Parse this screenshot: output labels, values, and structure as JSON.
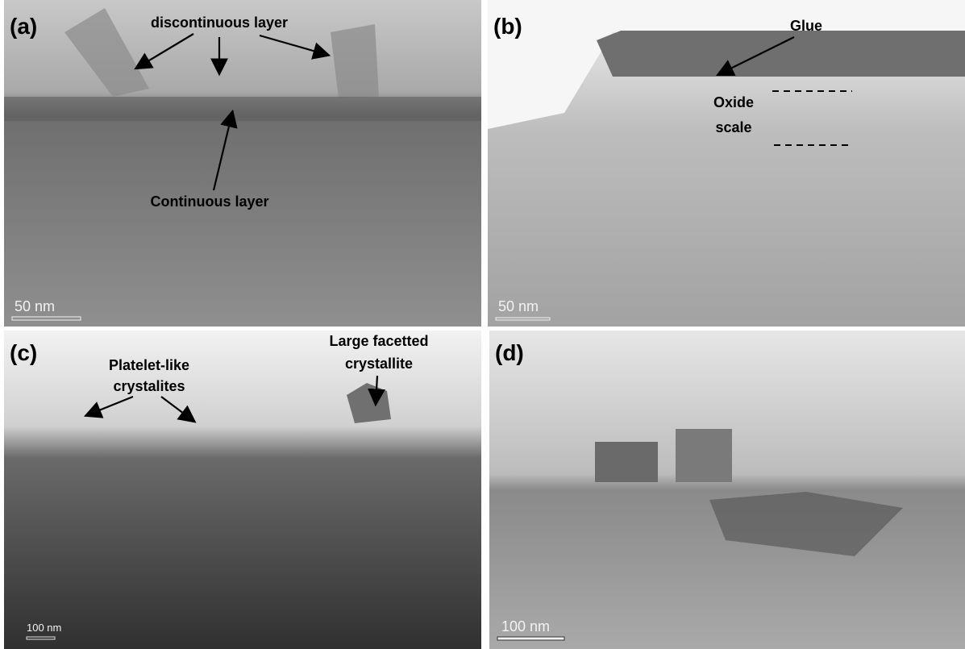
{
  "panels": [
    {
      "label": "(a)",
      "annotations": [
        {
          "lines": [
            "discontinuous layer"
          ]
        },
        {
          "lines": [
            "Continuous layer"
          ]
        }
      ],
      "scale_bar": "50 nm"
    },
    {
      "label": "(b)",
      "annotations": [
        {
          "lines": [
            "Glue"
          ]
        },
        {
          "lines": [
            "Oxide",
            "scale"
          ]
        }
      ],
      "scale_bar": "50 nm"
    },
    {
      "label": "(c)",
      "annotations": [
        {
          "lines": [
            "Platelet-like",
            "crystalites"
          ]
        },
        {
          "lines": [
            "Large facetted",
            "crystallite"
          ]
        }
      ],
      "scale_bar": "100 nm"
    },
    {
      "label": "(d)",
      "annotations": [],
      "scale_bar": "100 nm"
    }
  ]
}
